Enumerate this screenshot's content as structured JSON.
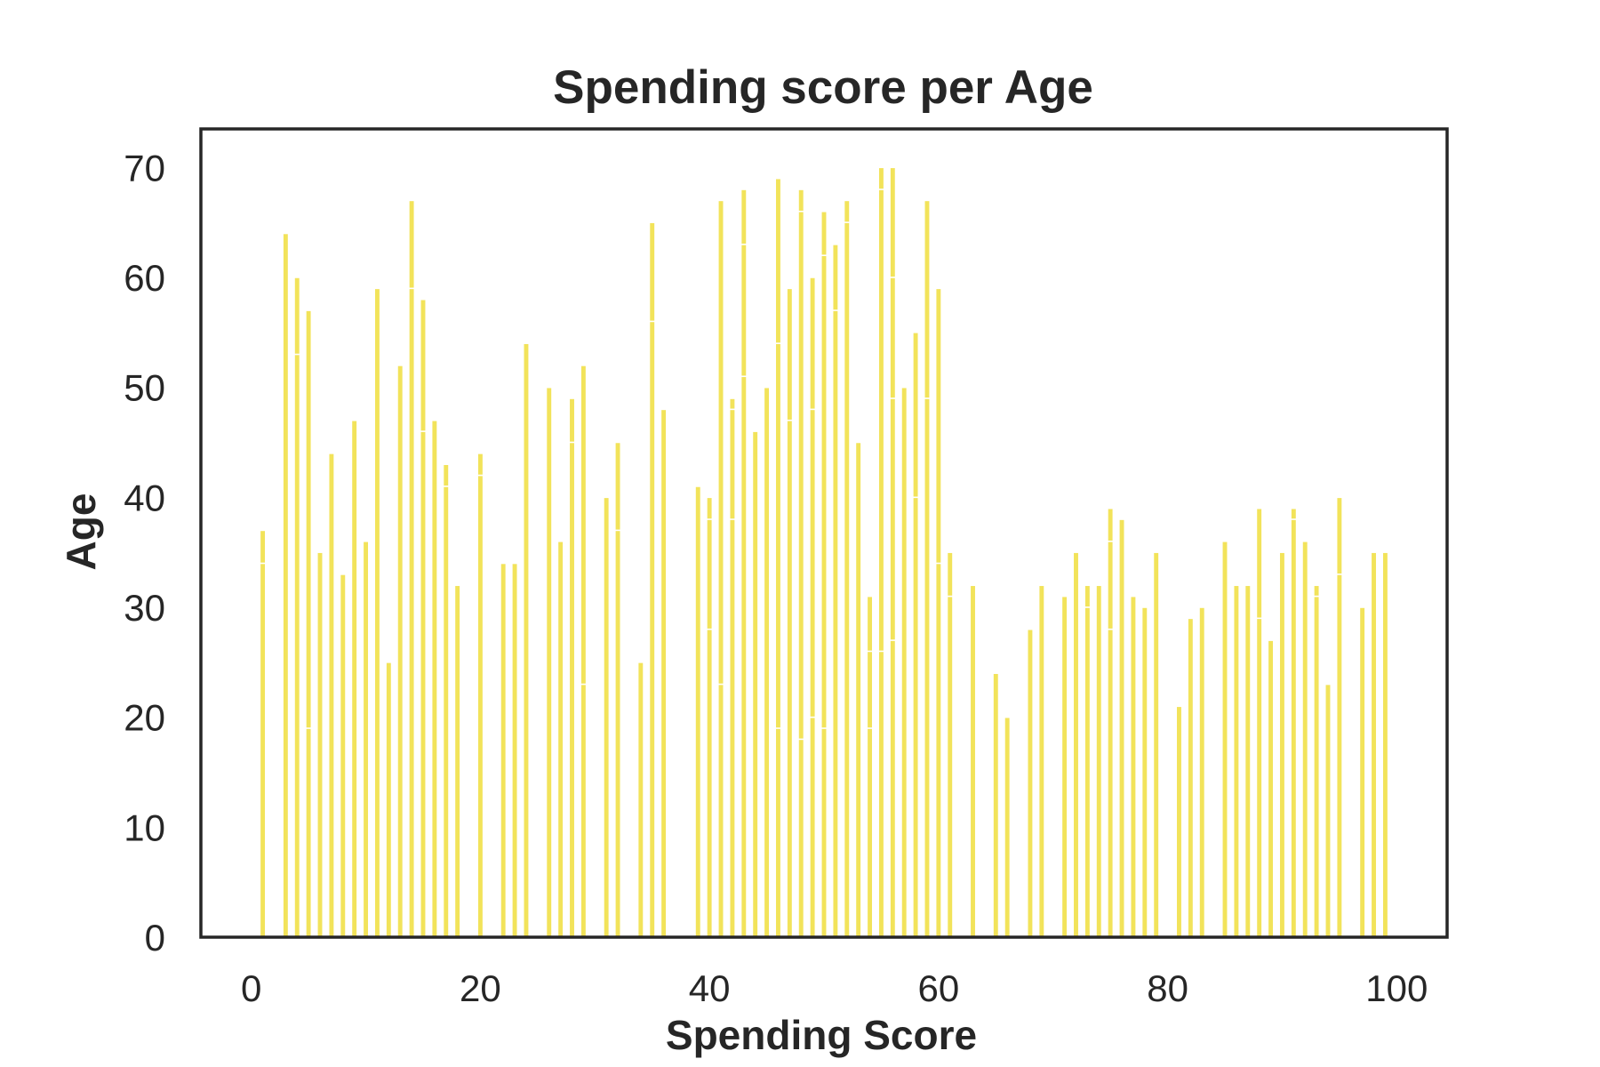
{
  "chart_data": {
    "type": "bar",
    "title": "Spending score per Age",
    "xlabel": "Spending Score",
    "ylabel": "Age",
    "xlim": [
      -4.4,
      104.4
    ],
    "ylim": [
      0,
      73.5
    ],
    "xticks": [
      0,
      20,
      40,
      60,
      80,
      100
    ],
    "yticks": [
      0,
      10,
      20,
      30,
      40,
      50,
      60,
      70
    ],
    "grid": false,
    "bar_color": "#f2e35a",
    "frame_color": "#262626",
    "text_color": "#262626",
    "bars": [
      {
        "x": 1,
        "ages": [
          34,
          37
        ]
      },
      {
        "x": 3,
        "ages": [
          64
        ]
      },
      {
        "x": 4,
        "ages": [
          53,
          60
        ]
      },
      {
        "x": 5,
        "ages": [
          19,
          57
        ]
      },
      {
        "x": 6,
        "ages": [
          35
        ]
      },
      {
        "x": 7,
        "ages": [
          44
        ]
      },
      {
        "x": 8,
        "ages": [
          33
        ]
      },
      {
        "x": 9,
        "ages": [
          47
        ]
      },
      {
        "x": 10,
        "ages": [
          36
        ]
      },
      {
        "x": 11,
        "ages": [
          59
        ]
      },
      {
        "x": 12,
        "ages": [
          25
        ]
      },
      {
        "x": 13,
        "ages": [
          52
        ]
      },
      {
        "x": 14,
        "ages": [
          59,
          67
        ]
      },
      {
        "x": 15,
        "ages": [
          46,
          58
        ]
      },
      {
        "x": 16,
        "ages": [
          47
        ]
      },
      {
        "x": 17,
        "ages": [
          41,
          43
        ]
      },
      {
        "x": 18,
        "ages": [
          32
        ]
      },
      {
        "x": 20,
        "ages": [
          42,
          44
        ]
      },
      {
        "x": 22,
        "ages": [
          34
        ]
      },
      {
        "x": 23,
        "ages": [
          34
        ]
      },
      {
        "x": 24,
        "ages": [
          54
        ]
      },
      {
        "x": 26,
        "ages": [
          50
        ]
      },
      {
        "x": 27,
        "ages": [
          36
        ]
      },
      {
        "x": 28,
        "ages": [
          45,
          49
        ]
      },
      {
        "x": 29,
        "ages": [
          23,
          52
        ]
      },
      {
        "x": 31,
        "ages": [
          40
        ]
      },
      {
        "x": 32,
        "ages": [
          37,
          45
        ]
      },
      {
        "x": 34,
        "ages": [
          25
        ]
      },
      {
        "x": 35,
        "ages": [
          56,
          65
        ]
      },
      {
        "x": 36,
        "ages": [
          48
        ]
      },
      {
        "x": 39,
        "ages": [
          41
        ]
      },
      {
        "x": 40,
        "ages": [
          28,
          38,
          40
        ]
      },
      {
        "x": 41,
        "ages": [
          23,
          67
        ]
      },
      {
        "x": 42,
        "ages": [
          38,
          48,
          49
        ]
      },
      {
        "x": 43,
        "ages": [
          51,
          63,
          68
        ]
      },
      {
        "x": 44,
        "ages": [
          46
        ]
      },
      {
        "x": 45,
        "ages": [
          50
        ]
      },
      {
        "x": 46,
        "ages": [
          19,
          54,
          69
        ]
      },
      {
        "x": 47,
        "ages": [
          47,
          59
        ]
      },
      {
        "x": 48,
        "ages": [
          18,
          66,
          68
        ]
      },
      {
        "x": 49,
        "ages": [
          20,
          48,
          60
        ]
      },
      {
        "x": 50,
        "ages": [
          19,
          62,
          66
        ]
      },
      {
        "x": 51,
        "ages": [
          57,
          63
        ]
      },
      {
        "x": 52,
        "ages": [
          65,
          67
        ]
      },
      {
        "x": 53,
        "ages": [
          45
        ]
      },
      {
        "x": 54,
        "ages": [
          19,
          26,
          31
        ]
      },
      {
        "x": 55,
        "ages": [
          26,
          68,
          70
        ]
      },
      {
        "x": 56,
        "ages": [
          27,
          49,
          60,
          70
        ]
      },
      {
        "x": 57,
        "ages": [
          50
        ]
      },
      {
        "x": 58,
        "ages": [
          40,
          55
        ]
      },
      {
        "x": 59,
        "ages": [
          49,
          67
        ]
      },
      {
        "x": 60,
        "ages": [
          34,
          59
        ]
      },
      {
        "x": 61,
        "ages": [
          31,
          35
        ]
      },
      {
        "x": 63,
        "ages": [
          32
        ]
      },
      {
        "x": 65,
        "ages": [
          24
        ]
      },
      {
        "x": 66,
        "ages": [
          20
        ]
      },
      {
        "x": 68,
        "ages": [
          28
        ]
      },
      {
        "x": 69,
        "ages": [
          32
        ]
      },
      {
        "x": 71,
        "ages": [
          31
        ]
      },
      {
        "x": 72,
        "ages": [
          35
        ]
      },
      {
        "x": 73,
        "ages": [
          30,
          32
        ]
      },
      {
        "x": 74,
        "ages": [
          32
        ]
      },
      {
        "x": 75,
        "ages": [
          28,
          36,
          39
        ]
      },
      {
        "x": 76,
        "ages": [
          38
        ]
      },
      {
        "x": 77,
        "ages": [
          31
        ]
      },
      {
        "x": 78,
        "ages": [
          30
        ]
      },
      {
        "x": 79,
        "ages": [
          35
        ]
      },
      {
        "x": 81,
        "ages": [
          21
        ]
      },
      {
        "x": 82,
        "ages": [
          29
        ]
      },
      {
        "x": 83,
        "ages": [
          30
        ]
      },
      {
        "x": 85,
        "ages": [
          36
        ]
      },
      {
        "x": 86,
        "ages": [
          32
        ]
      },
      {
        "x": 87,
        "ages": [
          32
        ]
      },
      {
        "x": 88,
        "ages": [
          29,
          39
        ]
      },
      {
        "x": 89,
        "ages": [
          27
        ]
      },
      {
        "x": 90,
        "ages": [
          35
        ]
      },
      {
        "x": 91,
        "ages": [
          38,
          39
        ]
      },
      {
        "x": 92,
        "ages": [
          36
        ]
      },
      {
        "x": 93,
        "ages": [
          31,
          32
        ]
      },
      {
        "x": 94,
        "ages": [
          23
        ]
      },
      {
        "x": 95,
        "ages": [
          33,
          40
        ]
      },
      {
        "x": 97,
        "ages": [
          30
        ]
      },
      {
        "x": 98,
        "ages": [
          35
        ]
      },
      {
        "x": 99,
        "ages": [
          35
        ]
      }
    ]
  }
}
